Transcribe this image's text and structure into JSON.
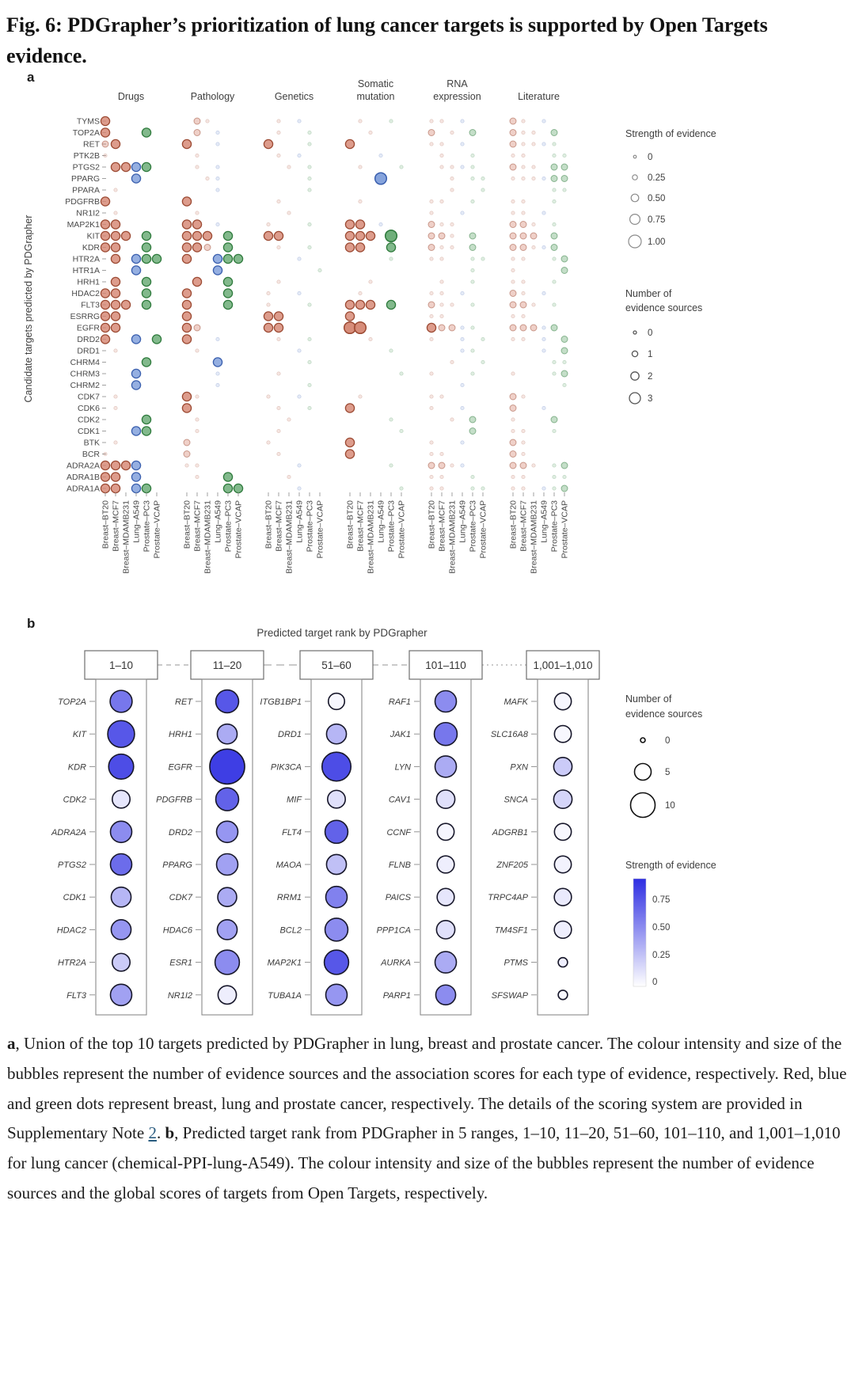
{
  "title": "Fig. 6: PDGrapher’s prioritization of lung cancer targets is supported by Open Targets evidence.",
  "panel_a": {
    "label": "a",
    "y_axis_label": "Candidate targets predicted by PDGrapher",
    "groups": [
      "Drugs",
      "Pathology",
      "Genetics",
      "Somatic\nmutation",
      "RNA\nexpression",
      "Literature"
    ],
    "cell_lines": [
      "Breast–BT20",
      "Breast–MCF7",
      "Breast–MDAMB231",
      "Lung–A549",
      "Prostate–PC3",
      "Prostate–VCAP"
    ],
    "cancer_colors": {
      "breast": {
        "fill": "#d4836f",
        "stroke": "#9c4a33"
      },
      "lung": {
        "fill": "#7b9bd9",
        "stroke": "#3a5fae"
      },
      "prostate": {
        "fill": "#63a86f",
        "stroke": "#2e7a3c"
      }
    },
    "size_key": {
      "0": "none",
      "1": "faint",
      "2": "small",
      "3": "medium",
      "4": "large"
    },
    "genes": [
      "TYMS",
      "TOP2A",
      "RET",
      "PTK2B",
      "PTGS2",
      "PPARG",
      "PPARA",
      "PDGFRB",
      "NR1I2",
      "MAP2K1",
      "KIT",
      "KDR",
      "HTR2A",
      "HTR1A",
      "HRH1",
      "HDAC2",
      "FLT3",
      "ESRRG",
      "EGFR",
      "DRD2",
      "DRD1",
      "CHRM4",
      "CHRM3",
      "CHRM2",
      "CDK7",
      "CDK6",
      "CDK2",
      "CDK1",
      "BTK",
      "BCR",
      "ADRA2A",
      "ADRA1B",
      "ADRA1A"
    ],
    "matrix": {
      "TYMS": [
        "300000",
        "021000",
        "010100",
        "010010",
        "110100",
        "210100"
      ],
      "TOP2A": [
        "300030",
        "020100",
        "010010",
        "001000",
        "201020",
        "211020"
      ],
      "RET": [
        "230000",
        "300100",
        "300010",
        "300000",
        "110100",
        "211110"
      ],
      "PTK2B": [
        "100000",
        "010000",
        "010100",
        "000100",
        "010010",
        "110011"
      ],
      "PTGS2": [
        "033330",
        "010100",
        "001010",
        "010001",
        "011110",
        "211022"
      ],
      "PPARG": [
        "000300",
        "001100",
        "000010",
        "000400",
        "001011",
        "111122"
      ],
      "PPARA": [
        "010000",
        "000100",
        "000010",
        "000000",
        "001001",
        "000011"
      ],
      "PDGFRB": [
        "300000",
        "300000",
        "010000",
        "010000",
        "110010",
        "110010"
      ],
      "NR1I2": [
        "010000",
        "010000",
        "001000",
        "000000",
        "100100",
        "110100"
      ],
      "MAP2K1": [
        "330000",
        "330100",
        "100010",
        "330100",
        "211000",
        "221010"
      ],
      "KIT": [
        "333030",
        "333030",
        "330000",
        "333040",
        "221020",
        "222020"
      ],
      "KDR": [
        "330030",
        "332030",
        "010010",
        "330030",
        "211020",
        "221120"
      ],
      "HTR2A": [
        "030333",
        "300333",
        "000100",
        "000010",
        "110011",
        "110012"
      ],
      "HTR1A": [
        "000300",
        "000300",
        "000001",
        "000000",
        "000010",
        "100002"
      ],
      "HRH1": [
        "030030",
        "030030",
        "010000",
        "001000",
        "010010",
        "110010"
      ],
      "HDAC2": [
        "330030",
        "300030",
        "100100",
        "010000",
        "110100",
        "210100"
      ],
      "FLT3": [
        "333030",
        "300030",
        "100010",
        "333030",
        "211010",
        "221010"
      ],
      "ESRRG": [
        "330000",
        "300000",
        "330000",
        "300000",
        "110000",
        "110000"
      ],
      "EGFR": [
        "330000",
        "320000",
        "330000",
        "440000",
        "322110",
        "222120"
      ],
      "DRD2": [
        "300303",
        "300100",
        "010010",
        "001000",
        "100101",
        "110102"
      ],
      "DRD1": [
        "010000",
        "010000",
        "000100",
        "000010",
        "000110",
        "000102"
      ],
      "CHRM4": [
        "000030",
        "000300",
        "000010",
        "000000",
        "001001",
        "000011"
      ],
      "CHRM3": [
        "000300",
        "000100",
        "010000",
        "000001",
        "100010",
        "100012"
      ],
      "CHRM2": [
        "000300",
        "000100",
        "000010",
        "000000",
        "000100",
        "000001"
      ],
      "CDK7": [
        "010000",
        "310000",
        "100100",
        "010000",
        "110000",
        "210000"
      ],
      "CDK6": [
        "010000",
        "300000",
        "010010",
        "300000",
        "100100",
        "200100"
      ],
      "CDK2": [
        "000030",
        "010000",
        "001000",
        "000010",
        "001020",
        "100020"
      ],
      "CDK1": [
        "000330",
        "010000",
        "010000",
        "000001",
        "000020",
        "110010"
      ],
      "BTK": [
        "010000",
        "200000",
        "100000",
        "300000",
        "100100",
        "210000"
      ],
      "BCR": [
        "100000",
        "200000",
        "010000",
        "300000",
        "110000",
        "210000"
      ],
      "ADRA2A": [
        "333300",
        "110000",
        "000100",
        "000010",
        "221100",
        "221012"
      ],
      "ADRA1B": [
        "330300",
        "010030",
        "001000",
        "000000",
        "110010",
        "110011"
      ],
      "ADRA1A": [
        "330330",
        "000033",
        "000100",
        "000001",
        "110011",
        "110112"
      ]
    },
    "legend_strength": {
      "title": "Strength of evidence",
      "labels": [
        "0",
        "0.25",
        "0.50",
        "0.75",
        "1.00"
      ]
    },
    "legend_sources": {
      "title": "Number of\nevidence sources",
      "labels": [
        "0",
        "1",
        "2",
        "3"
      ]
    }
  },
  "panel_b": {
    "label": "b",
    "title": "Predicted target rank by PDGrapher",
    "gradient_top": "#2d2de2",
    "groups": [
      {
        "range": "1–10",
        "items": [
          [
            "TOP2A",
            0.52,
            0.65
          ],
          [
            "KIT",
            0.68,
            0.8
          ],
          [
            "KDR",
            0.62,
            0.85
          ],
          [
            "CDK2",
            0.38,
            0.12
          ],
          [
            "ADRA2A",
            0.5,
            0.55
          ],
          [
            "PTGS2",
            0.5,
            0.7
          ],
          [
            "CDK1",
            0.45,
            0.35
          ],
          [
            "HDAC2",
            0.45,
            0.5
          ],
          [
            "HTR2A",
            0.38,
            0.25
          ],
          [
            "FLT3",
            0.5,
            0.45
          ]
        ]
      },
      {
        "range": "11–20",
        "items": [
          [
            "RET",
            0.55,
            0.8
          ],
          [
            "HRH1",
            0.45,
            0.4
          ],
          [
            "EGFR",
            0.95,
            0.92
          ],
          [
            "PDGFRB",
            0.55,
            0.75
          ],
          [
            "DRD2",
            0.5,
            0.5
          ],
          [
            "PPARG",
            0.5,
            0.45
          ],
          [
            "CDK7",
            0.42,
            0.4
          ],
          [
            "HDAC6",
            0.45,
            0.45
          ],
          [
            "ESR1",
            0.6,
            0.55
          ],
          [
            "NR1I2",
            0.4,
            0.08
          ]
        ]
      },
      {
        "range": "51–60",
        "items": [
          [
            "ITGB1BP1",
            0.33,
            0.04
          ],
          [
            "DRD1",
            0.45,
            0.35
          ],
          [
            "PIK3CA",
            0.75,
            0.85
          ],
          [
            "MIF",
            0.38,
            0.15
          ],
          [
            "FLT4",
            0.55,
            0.75
          ],
          [
            "MAOA",
            0.45,
            0.3
          ],
          [
            "RRM1",
            0.5,
            0.6
          ],
          [
            "BCL2",
            0.55,
            0.55
          ],
          [
            "MAP2K1",
            0.6,
            0.8
          ],
          [
            "TUBA1A",
            0.5,
            0.5
          ]
        ]
      },
      {
        "range": "101–110",
        "items": [
          [
            "RAF1",
            0.5,
            0.55
          ],
          [
            "JAK1",
            0.55,
            0.65
          ],
          [
            "LYN",
            0.5,
            0.4
          ],
          [
            "CAV1",
            0.4,
            0.15
          ],
          [
            "CCNF",
            0.35,
            0.05
          ],
          [
            "FLNB",
            0.36,
            0.08
          ],
          [
            "PAICS",
            0.36,
            0.12
          ],
          [
            "PPP1CA",
            0.4,
            0.15
          ],
          [
            "AURKA",
            0.5,
            0.4
          ],
          [
            "PARP1",
            0.45,
            0.55
          ]
        ]
      },
      {
        "range": "1,001–1,010",
        "items": [
          [
            "MAFK",
            0.35,
            0.04
          ],
          [
            "SLC16A8",
            0.35,
            0.04
          ],
          [
            "PXN",
            0.4,
            0.25
          ],
          [
            "SNCA",
            0.4,
            0.2
          ],
          [
            "ADGRB1",
            0.35,
            0.04
          ],
          [
            "ZNF205",
            0.35,
            0.06
          ],
          [
            "TRPC4AP",
            0.36,
            0.1
          ],
          [
            "TM4SF1",
            0.36,
            0.08
          ],
          [
            "PTMS",
            0.1,
            0.08
          ],
          [
            "SFSWAP",
            0.1,
            0.04
          ]
        ]
      }
    ],
    "legend_sources": {
      "title": "Number of\nevidence sources",
      "labels": [
        "0",
        "5",
        "10"
      ]
    },
    "legend_strength": {
      "title": "Strength of evidence",
      "labels": [
        "0.75",
        "0.50",
        "0.25",
        "0"
      ]
    }
  },
  "caption": {
    "segments": [
      {
        "text": "a",
        "bold": true
      },
      {
        "text": ", Union of the top 10 targets predicted by PDGrapher in lung, breast and prostate cancer. The colour intensity and size of the bubbles represent the number of evidence sources and the association scores for each type of evidence, respectively. Red, blue and green dots represent breast, lung and prostate cancer, respectively. The details of the scoring system are provided in Supplementary Note "
      },
      {
        "text": "2",
        "link": true
      },
      {
        "text": ". "
      },
      {
        "text": "b",
        "bold": true
      },
      {
        "text": ", Predicted target rank from PDGrapher in 5 ranges, 1–10, 11–20, 51–60, 101–110, and 1,001–1,010 for lung cancer (chemical-PPI-lung-A549). The colour intensity and size of the bubbles represent the number of evidence sources and the global scores of targets from Open Targets, respectively."
      }
    ]
  }
}
